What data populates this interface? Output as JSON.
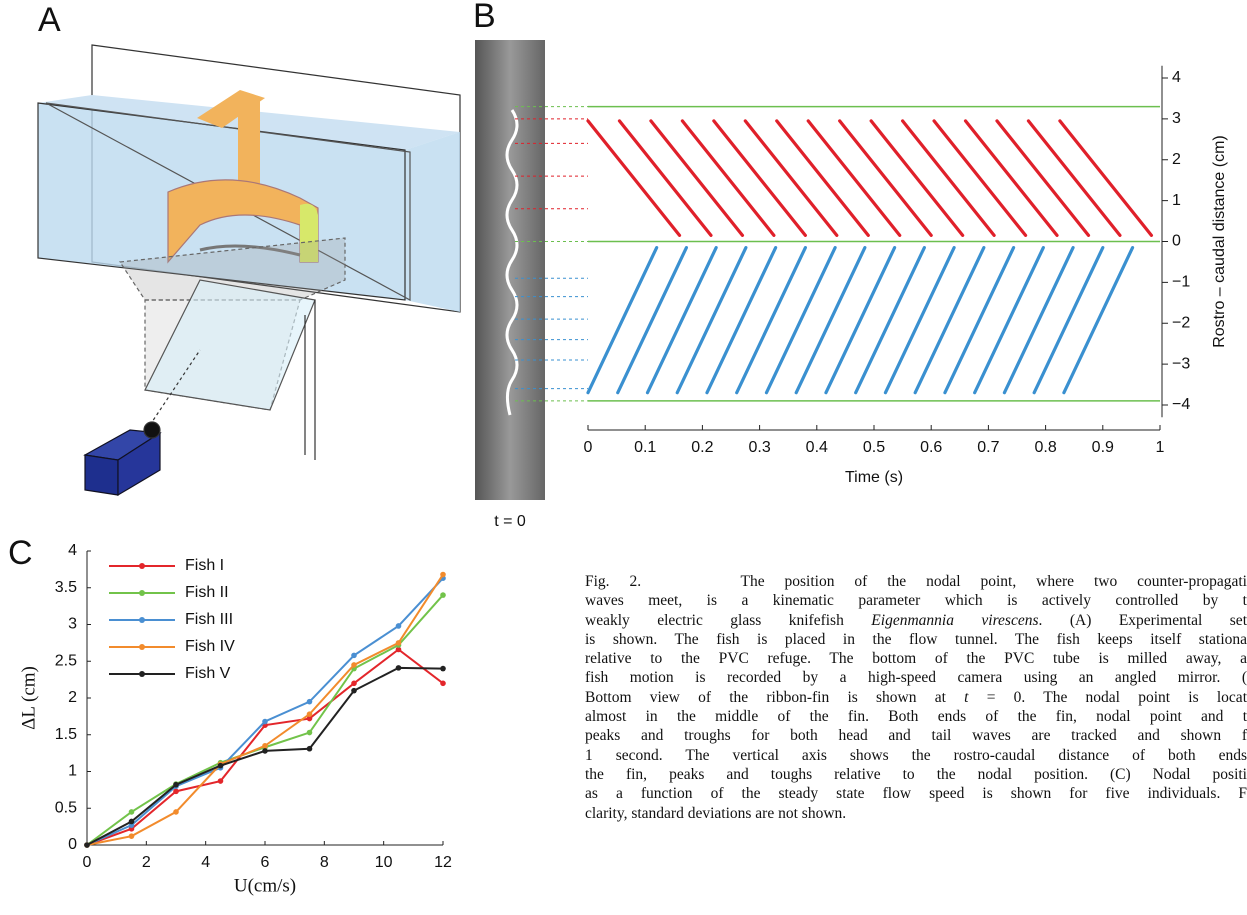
{
  "panels": {
    "a": {
      "label": "A"
    },
    "b": {
      "label": "B",
      "image_caption": "t = 0"
    },
    "c": {
      "label": "C"
    }
  },
  "chart_data": [
    {
      "type": "kinematics",
      "xlabel": "Time (s)",
      "ylabel": "Rostro – caudal distance (cm)",
      "xlim": [
        0,
        1
      ],
      "ylim": [
        -4.3,
        4.3
      ],
      "xticks": [
        0,
        0.1,
        0.2,
        0.3,
        0.4,
        0.5,
        0.6,
        0.7,
        0.8,
        0.9,
        1
      ],
      "yticks": [
        {
          "value": -4,
          "label": "−4"
        },
        {
          "value": -3,
          "label": "−3"
        },
        {
          "value": -2,
          "label": "−2"
        },
        {
          "value": -1,
          "label": "−1"
        },
        0,
        1,
        2,
        3,
        4
      ],
      "reference_lines": {
        "color": "#6cbf4f",
        "values": [
          3.3,
          0,
          -3.9
        ]
      },
      "series": [
        {
          "color": "#e0202a",
          "levels": [
            3.0,
            2.4,
            1.6,
            0.8
          ],
          "y": [
            2.95,
            0.15
          ],
          "t0": [
            0,
            0.055,
            0.11,
            0.165,
            0.22,
            0.275,
            0.33,
            0.385,
            0.44,
            0.495,
            0.55,
            0.605,
            0.66,
            0.715,
            0.77,
            0.825
          ],
          "t1": [
            0.16,
            0.215,
            0.27,
            0.325,
            0.38,
            0.435,
            0.49,
            0.545,
            0.6,
            0.655,
            0.71,
            0.765,
            0.82,
            0.875,
            0.93,
            0.985
          ]
        },
        {
          "color": "#3a90d0",
          "levels": [
            -0.9,
            -1.35,
            -1.9,
            -2.4,
            -2.9,
            -3.6
          ],
          "y": [
            -3.7,
            -0.15
          ],
          "t0": [
            0,
            0.052,
            0.104,
            0.156,
            0.208,
            0.26,
            0.312,
            0.364,
            0.416,
            0.468,
            0.52,
            0.572,
            0.624,
            0.676,
            0.728,
            0.78,
            0.832
          ],
          "t1": [
            0.12,
            0.172,
            0.224,
            0.276,
            0.328,
            0.38,
            0.432,
            0.484,
            0.536,
            0.588,
            0.64,
            0.692,
            0.744,
            0.796,
            0.848,
            0.9,
            0.952
          ]
        }
      ]
    },
    {
      "type": "line",
      "xlabel": "U(cm/s)",
      "ylabel": "ΔL (cm)",
      "xlim": [
        0,
        12
      ],
      "ylim": [
        0,
        4
      ],
      "xticks": [
        0,
        2,
        4,
        6,
        8,
        10,
        12
      ],
      "yticks": [
        0,
        0.5,
        1,
        1.5,
        2,
        2.5,
        3,
        3.5,
        4
      ],
      "legend": "upper left",
      "x": [
        0,
        1.5,
        3,
        4.5,
        6,
        7.5,
        9,
        10.5,
        12
      ],
      "series": [
        {
          "name": "Fish I",
          "color": "#e3262b",
          "values": [
            0,
            0.22,
            0.73,
            0.87,
            1.63,
            1.72,
            2.2,
            2.66,
            2.2
          ]
        },
        {
          "name": "Fish II",
          "color": "#72c34a",
          "values": [
            0,
            0.45,
            0.83,
            1.12,
            1.33,
            1.53,
            2.4,
            2.72,
            3.4
          ]
        },
        {
          "name": "Fish III",
          "color": "#4a8fd2",
          "values": [
            0,
            0.27,
            0.8,
            1.05,
            1.68,
            1.95,
            2.58,
            2.98,
            3.63
          ]
        },
        {
          "name": "Fish IV",
          "color": "#f28b2c",
          "values": [
            0,
            0.12,
            0.45,
            1.1,
            1.35,
            1.78,
            2.45,
            2.75,
            3.68
          ]
        },
        {
          "name": "Fish V",
          "color": "#222222",
          "values": [
            0,
            0.32,
            0.82,
            1.08,
            1.28,
            1.31,
            2.1,
            2.41,
            2.4
          ]
        }
      ]
    }
  ],
  "caption": {
    "lines": [
      [
        "Fig. 2.     The position of the nodal point, where two counter-propagati"
      ],
      [
        "waves meet, is a kinematic parameter which is actively controlled by t"
      ],
      [
        "weakly electric glass knifefish ",
        "Eigenmannia virescens",
        ". (A) Experimental set"
      ],
      [
        "is shown. The fish is placed in the flow tunnel. The fish keeps itself stationa"
      ],
      [
        "relative to the PVC refuge. The bottom of the PVC tube is milled away, a"
      ],
      [
        "fish motion is recorded by a high-speed camera using an angled mirror. ("
      ],
      [
        "Bottom view of the ribbon-fin is shown at ",
        "t",
        " = 0. The nodal point is locat"
      ],
      [
        "almost in the middle of the fin. Both ends of the fin, nodal point and t"
      ],
      [
        "peaks and troughs for both head and tail waves are tracked and shown f"
      ],
      [
        "1 second. The vertical axis shows the rostro-caudal distance of both ends"
      ],
      [
        "the fin, peaks and toughs relative to the nodal position. (C) Nodal positi"
      ],
      [
        "as a function of the steady state flow speed is shown for five individuals. F"
      ],
      [
        "clarity, standard deviations are not shown."
      ]
    ]
  }
}
